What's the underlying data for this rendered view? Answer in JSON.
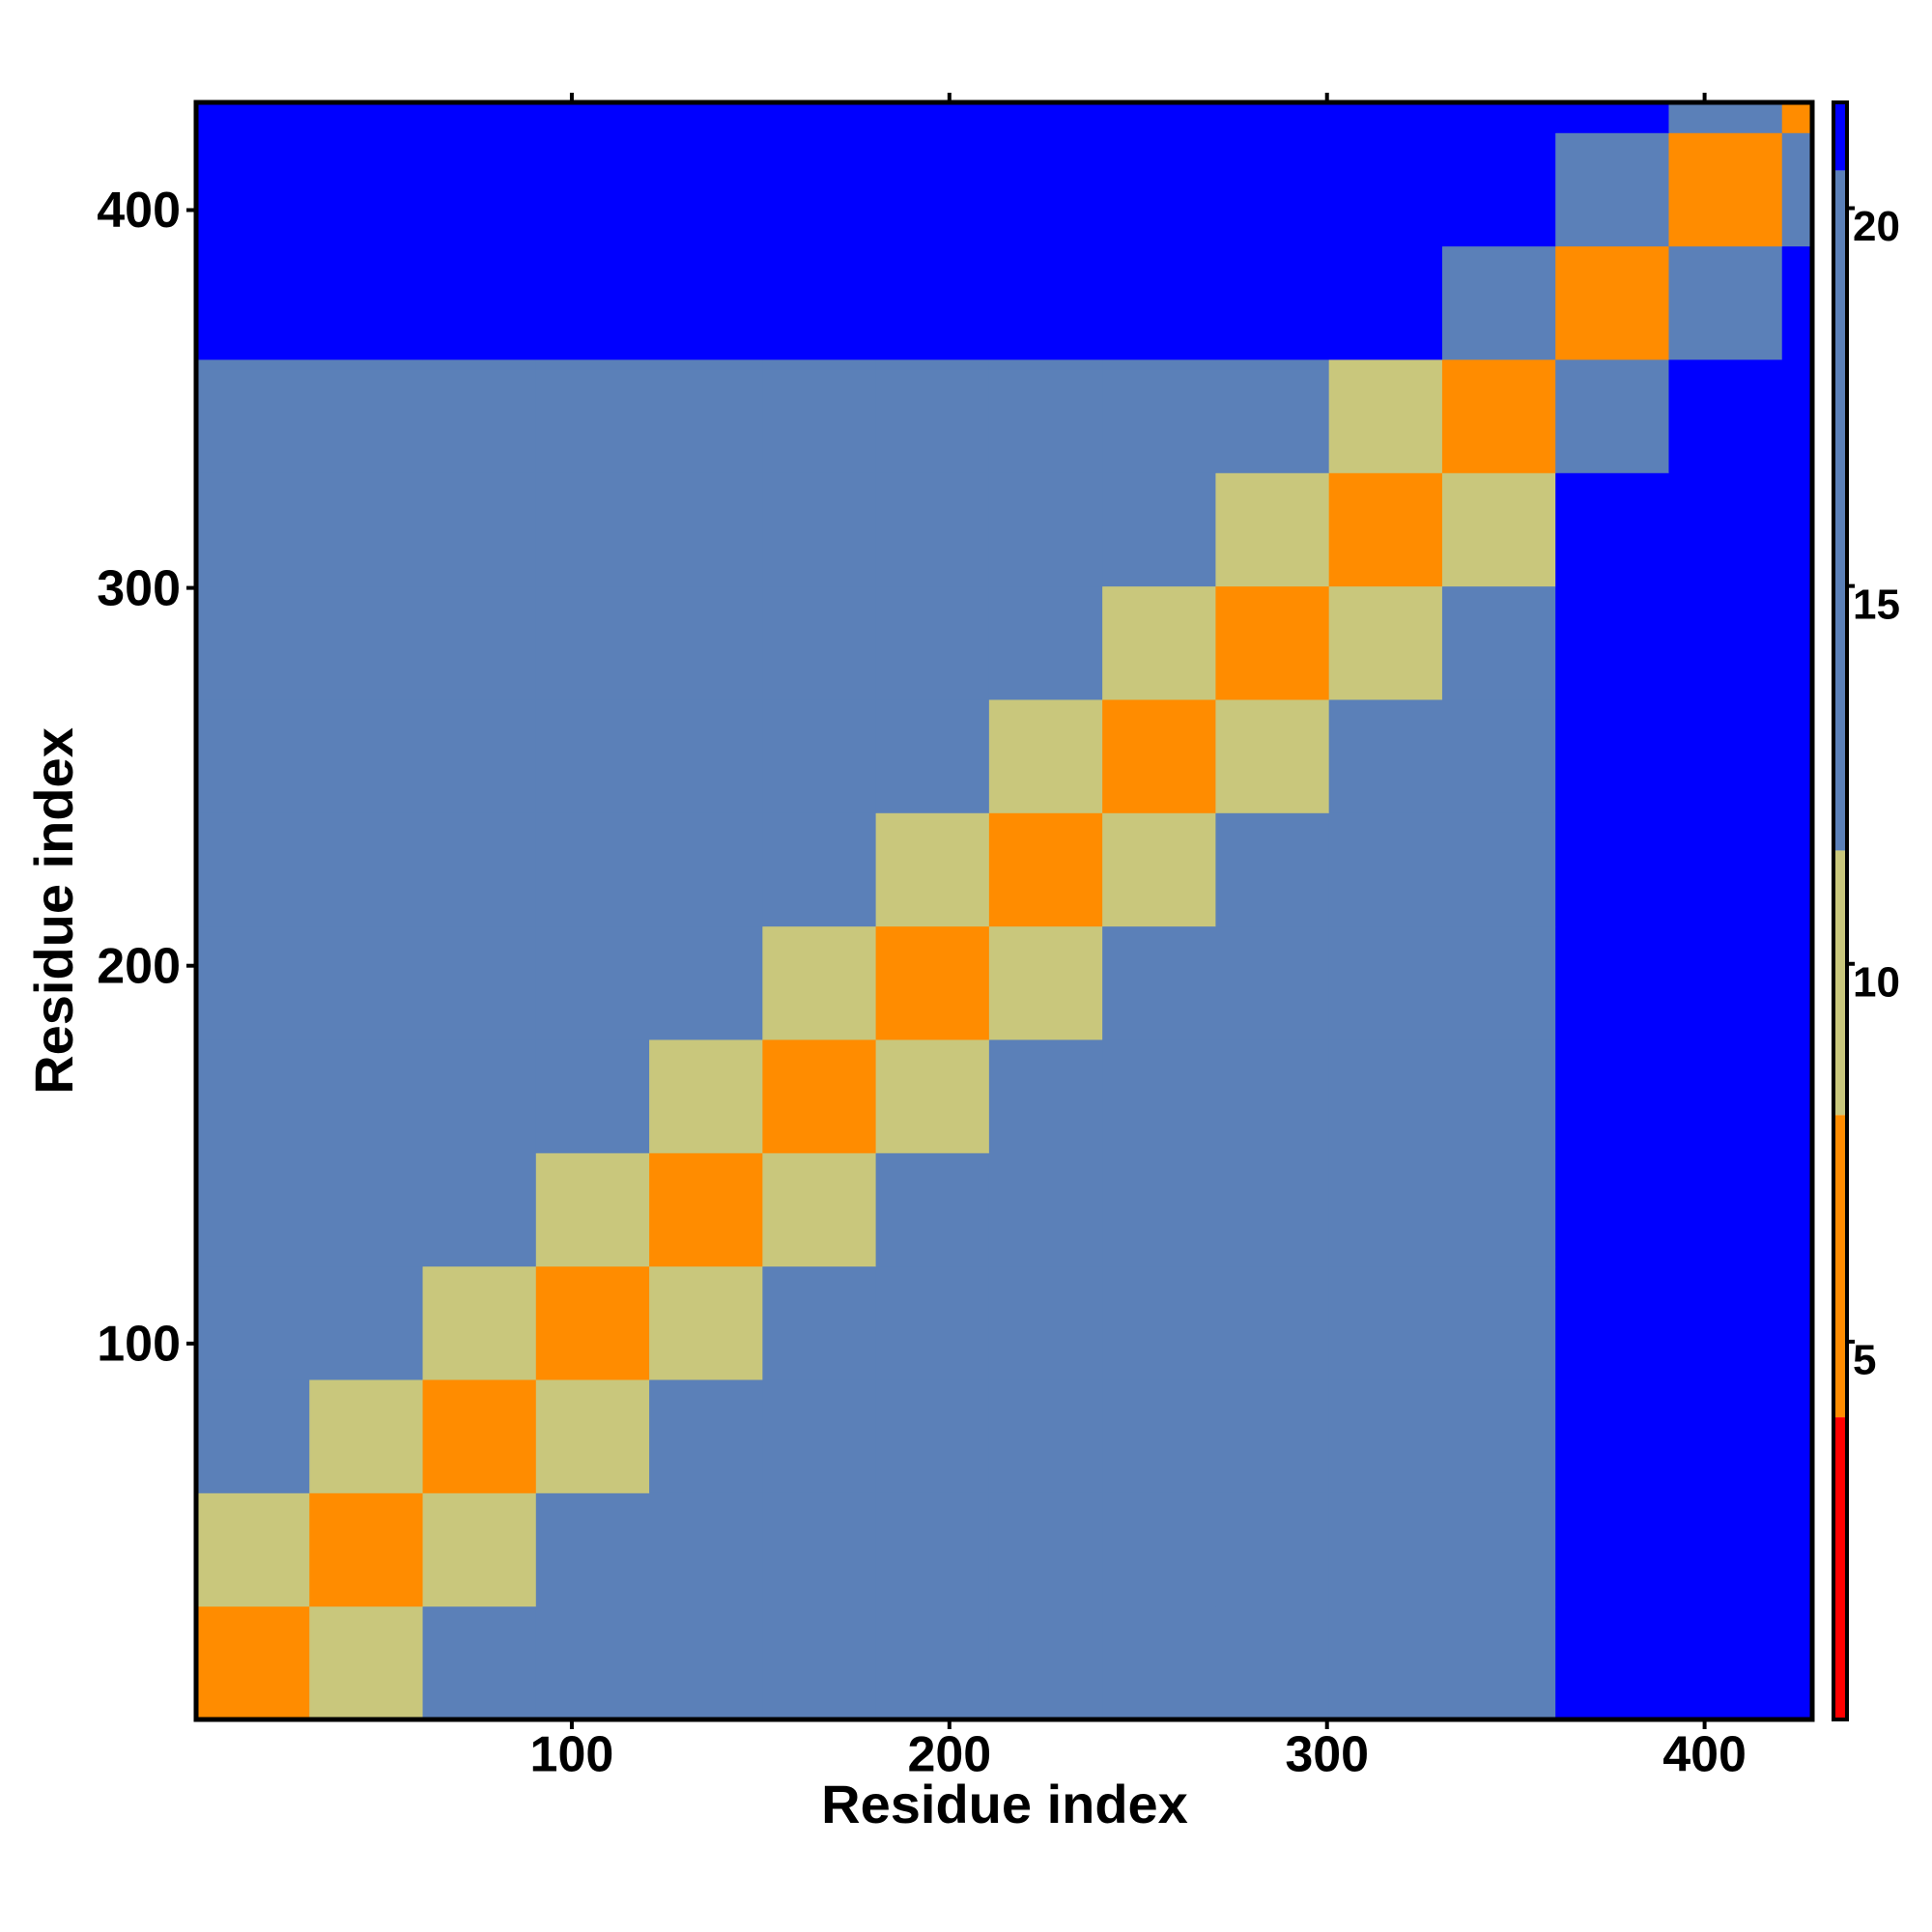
{
  "chart_data": {
    "type": "heatmap",
    "x_label": "Residue index",
    "y_label": "Residue index",
    "x_bins": [
      0.5,
      30.5,
      60.5,
      90.5,
      120.5,
      150.5,
      180.5,
      210.5,
      240.5,
      270.5,
      300.5,
      330.5,
      360.5,
      390.5,
      420.5,
      428.5
    ],
    "y_bins": [
      0.5,
      30.5,
      60.5,
      90.5,
      120.5,
      150.5,
      180.5,
      210.5,
      240.5,
      270.5,
      300.5,
      330.5,
      360.5,
      390.5,
      420.5,
      428.5
    ],
    "values": [
      [
        5,
        11,
        15,
        15,
        15,
        15,
        15,
        15,
        15,
        15,
        15,
        17,
        21,
        21,
        21
      ],
      [
        11,
        5,
        11,
        15,
        15,
        15,
        15,
        15,
        15,
        18,
        15,
        17,
        21,
        21,
        21
      ],
      [
        15,
        11,
        5,
        11,
        15,
        15,
        15,
        15,
        15,
        18,
        15,
        17,
        21,
        21,
        21
      ],
      [
        15,
        15,
        11,
        5,
        11,
        15,
        15,
        15,
        15,
        18,
        18,
        17,
        21,
        21,
        21
      ],
      [
        15,
        15,
        15,
        11,
        5,
        11,
        15,
        15,
        15,
        15,
        18,
        17,
        21,
        21,
        21
      ],
      [
        15,
        15,
        15,
        15,
        11,
        5,
        11,
        15,
        15,
        15,
        15,
        17,
        21,
        21,
        21
      ],
      [
        15,
        15,
        15,
        15,
        15,
        11,
        5,
        11,
        15,
        15,
        15,
        17,
        21,
        21,
        21
      ],
      [
        15,
        15,
        15,
        15,
        15,
        15,
        11,
        5,
        11,
        15,
        15,
        17,
        21,
        21,
        21
      ],
      [
        15,
        15,
        15,
        15,
        15,
        15,
        15,
        11,
        5,
        11,
        15,
        17,
        21,
        21,
        21
      ],
      [
        15,
        18,
        18,
        18,
        15,
        15,
        15,
        15,
        11,
        5,
        11,
        17,
        21,
        21,
        21
      ],
      [
        15,
        15,
        15,
        18,
        18,
        15,
        15,
        15,
        15,
        11,
        5,
        11,
        21,
        21,
        21
      ],
      [
        17,
        17,
        17,
        17,
        17,
        17,
        17,
        17,
        17,
        17,
        11,
        5,
        13,
        21,
        21
      ],
      [
        21,
        21,
        21,
        21,
        21,
        21,
        21,
        21,
        21,
        21,
        21,
        13,
        5,
        13,
        21
      ],
      [
        21,
        21,
        21,
        21,
        21,
        21,
        21,
        21,
        21,
        21,
        21,
        21,
        13,
        5,
        13
      ],
      [
        21,
        21,
        21,
        21,
        21,
        21,
        21,
        21,
        21,
        21,
        21,
        21,
        21,
        13,
        5
      ]
    ],
    "xlim": [
      0.5,
      428.5
    ],
    "ylim": [
      0.5,
      428.5
    ],
    "xticks": [
      100,
      200,
      300,
      400
    ],
    "yticks": [
      100,
      200,
      300,
      400
    ],
    "zlim": [
      0,
      21.4
    ],
    "zticks": [
      5,
      10,
      15,
      20
    ],
    "colorscale": [
      [
        0,
        "#ff0000"
      ],
      [
        4,
        "#ff8c00"
      ],
      [
        8,
        "#c9c77c"
      ],
      [
        11.5,
        "#5b80b8"
      ],
      [
        20.5,
        "#0000ff"
      ]
    ]
  }
}
